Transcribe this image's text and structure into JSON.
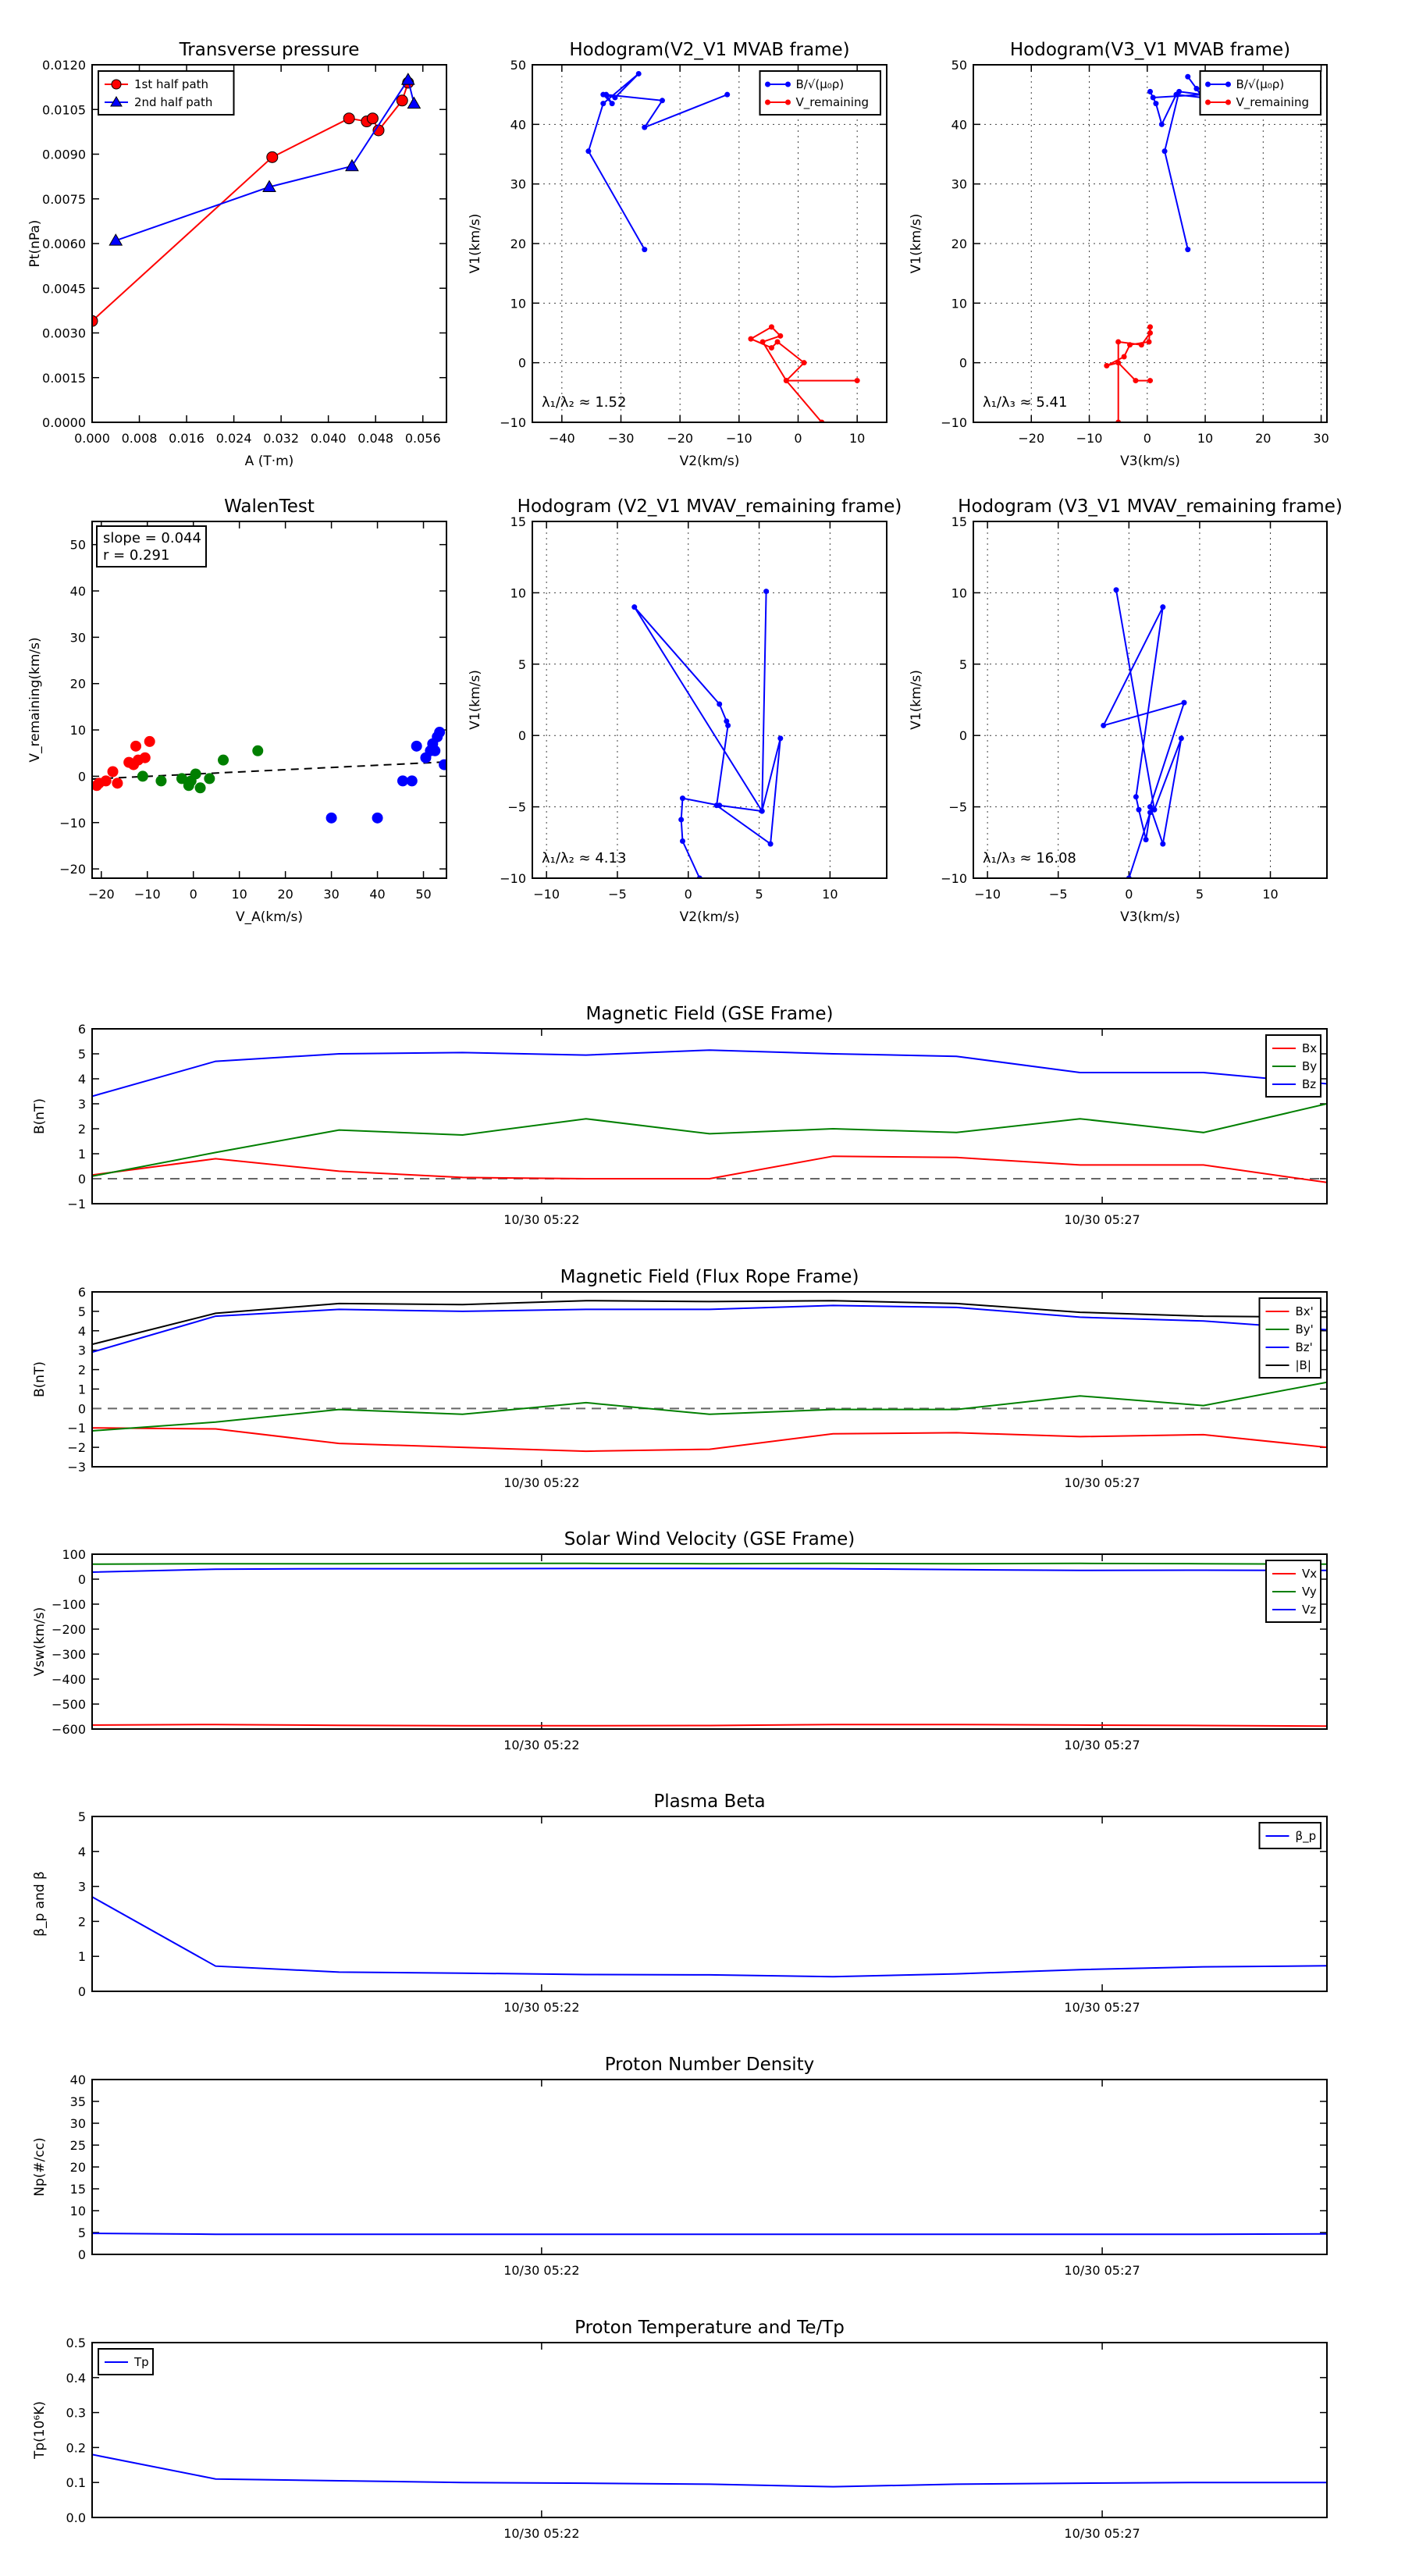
{
  "chart_data": [
    {
      "type": "scatter",
      "title": "Transverse pressure",
      "xlabel": "A (T·m)",
      "ylabel": "Pt(nPa)",
      "xlim": [
        0,
        0.06
      ],
      "ylim": [
        0,
        0.012
      ],
      "xticks": [
        0.0,
        0.008,
        0.016,
        0.024,
        0.032,
        0.04,
        0.048,
        0.056
      ],
      "yticks": [
        0.0,
        0.0015,
        0.003,
        0.0045,
        0.006,
        0.0075,
        0.009,
        0.0105,
        0.012
      ],
      "tick_decimals": [
        3,
        4
      ],
      "grid": false,
      "legend_position": "top-left",
      "series": [
        {
          "name": "1st half path",
          "color": "#ff0000",
          "marker": "circle",
          "x": [
            0.0,
            0.0305,
            0.0435,
            0.0465,
            0.0475,
            0.0485,
            0.0525,
            0.0535
          ],
          "y": [
            0.0034,
            0.0089,
            0.0102,
            0.0101,
            0.0102,
            0.0098,
            0.0108,
            0.0114
          ]
        },
        {
          "name": "2nd half path",
          "color": "#0000ff",
          "marker": "triangle",
          "x": [
            0.004,
            0.03,
            0.044,
            0.0535,
            0.0545
          ],
          "y": [
            0.0061,
            0.0079,
            0.0086,
            0.0115,
            0.0107
          ]
        }
      ]
    },
    {
      "type": "line",
      "title": "Hodogram(V2_V1 MVAB frame)",
      "xlabel": "V2(km/s)",
      "ylabel": "V1(km/s)",
      "xlim": [
        -45,
        15
      ],
      "ylim": [
        -10,
        50
      ],
      "xticks": [
        -40,
        -30,
        -20,
        -10,
        0,
        10
      ],
      "yticks": [
        -10,
        0,
        10,
        20,
        30,
        40,
        50
      ],
      "grid": true,
      "legend_position": "top-right",
      "annotation": "λ₁/λ₂ ≈ 1.52",
      "series": [
        {
          "name": "B/√(μ₀ρ)",
          "color": "#0000ff",
          "x": [
            -12,
            -26,
            -23,
            -32.5,
            -31.5,
            -33,
            -31,
            -27,
            -33,
            -35.5,
            -26
          ],
          "y": [
            45,
            39.5,
            44,
            45,
            43.5,
            45,
            44.5,
            48.5,
            43.5,
            35.5,
            19
          ]
        },
        {
          "name": "V_remaining",
          "color": "#ff0000",
          "x": [
            4,
            -2,
            -6,
            -3,
            -4.5,
            -8,
            -4.5,
            -3.5,
            1,
            -2,
            10
          ],
          "y": [
            -10,
            -3,
            3.5,
            4.5,
            6,
            4,
            2.5,
            3.5,
            0,
            -3,
            -3
          ]
        }
      ]
    },
    {
      "type": "line",
      "title": "Hodogram(V3_V1 MVAB frame)",
      "xlabel": "V3(km/s)",
      "ylabel": "V1(km/s)",
      "xlim": [
        -30,
        31
      ],
      "ylim": [
        -10,
        50
      ],
      "xticks": [
        -20,
        -10,
        0,
        10,
        20,
        30
      ],
      "yticks": [
        -10,
        0,
        10,
        20,
        30,
        40,
        50
      ],
      "grid": true,
      "legend_position": "top-right",
      "annotation": "λ₁/λ₃ ≈ 5.41",
      "series": [
        {
          "name": "B/√(μ₀ρ)",
          "color": "#0000ff",
          "x": [
            7,
            8.5,
            9.5,
            5,
            2.5,
            1.5,
            0.5,
            1,
            9.5,
            5.5,
            3,
            7
          ],
          "y": [
            48,
            46,
            44.5,
            45,
            40,
            43.5,
            45.5,
            44.5,
            45,
            45.5,
            35.5,
            19
          ]
        },
        {
          "name": "V_remaining",
          "color": "#ff0000",
          "x": [
            -5,
            -5,
            -1,
            0.5,
            0.5,
            0.3,
            -3,
            -4,
            -7,
            -5,
            -2,
            0.5
          ],
          "y": [
            -10,
            3.5,
            3,
            5,
            6,
            3.5,
            3,
            1,
            -0.5,
            0,
            -3,
            -3
          ]
        }
      ]
    },
    {
      "type": "scatter",
      "title": "WalenTest",
      "xlabel": "V_A(km/s)",
      "ylabel": "V_remaining(km/s)",
      "xlim": [
        -22,
        55
      ],
      "ylim": [
        -22,
        55
      ],
      "xticks": [
        -20,
        -10,
        0,
        10,
        20,
        30,
        40,
        50
      ],
      "yticks": [
        -20,
        -10,
        0,
        10,
        20,
        30,
        40,
        50
      ],
      "grid": false,
      "annotation": [
        "slope = 0.044",
        "r = 0.291"
      ],
      "fit_line": {
        "x": [
          -22,
          55
        ],
        "y": [
          -0.6,
          3.1
        ]
      },
      "series": [
        {
          "name": "",
          "color": "#ff0000",
          "x": [
            -21,
            -20.5,
            -19,
            -17.5,
            -16.5,
            -14,
            -13,
            -12.5,
            -12,
            -10.5,
            -9.5
          ],
          "y": [
            -2,
            -1.5,
            -1,
            1,
            -1.5,
            3,
            2.5,
            6.5,
            3.5,
            4,
            7.5
          ]
        },
        {
          "name": "",
          "color": "#007f00",
          "x": [
            -11,
            -7,
            -2.5,
            -1,
            -0.5,
            0.5,
            1.5,
            3.5,
            6.5,
            14
          ],
          "y": [
            0,
            -1,
            -0.5,
            -2,
            -1,
            0.5,
            -2.5,
            -0.5,
            3.5,
            5.5
          ]
        },
        {
          "name": "",
          "color": "#0000ff",
          "x": [
            30,
            40,
            45.5,
            47.5,
            48.5,
            50.5,
            51.5,
            52,
            52.5,
            53,
            53.5,
            54.5
          ],
          "y": [
            -9,
            -9,
            -1,
            -1,
            6.5,
            4,
            5.5,
            7,
            5.5,
            8.5,
            9.5,
            2.5
          ]
        }
      ]
    },
    {
      "type": "line",
      "title": "Hodogram (V2_V1 MVAV_remaining frame)",
      "xlabel": "V2(km/s)",
      "ylabel": "V1(km/s)",
      "xlim": [
        -11,
        14
      ],
      "ylim": [
        -10,
        15
      ],
      "xticks": [
        -10,
        -5,
        0,
        5,
        10
      ],
      "yticks": [
        -10,
        -5,
        0,
        5,
        10,
        15
      ],
      "grid": true,
      "annotation": "λ₁/λ₂ ≈ 4.13",
      "series": [
        {
          "name": "",
          "color": "#0000ff",
          "x": [
            5.5,
            5.2,
            6.5,
            5.8,
            2.0,
            2.8,
            2.7,
            2.2,
            -3.8,
            5.2,
            2.2,
            -0.4,
            -0.5,
            -0.4,
            0.8
          ],
          "y": [
            10.1,
            -5.3,
            -0.2,
            -7.6,
            -4.9,
            0.7,
            1.0,
            2.2,
            9.0,
            -5.3,
            -4.9,
            -4.4,
            -5.9,
            -7.4,
            -10.0
          ]
        }
      ]
    },
    {
      "type": "line",
      "title": "Hodogram (V3_V1 MVAV_remaining frame)",
      "xlabel": "V3(km/s)",
      "ylabel": "V1(km/s)",
      "xlim": [
        -11,
        14
      ],
      "ylim": [
        -10,
        15
      ],
      "xticks": [
        -10,
        -5,
        0,
        5,
        10
      ],
      "yticks": [
        -10,
        -5,
        0,
        5,
        10,
        15
      ],
      "grid": true,
      "annotation": "λ₁/λ₃ ≈ 16.08",
      "series": [
        {
          "name": "",
          "color": "#0000ff",
          "x": [
            -0.9,
            1.8,
            3.7,
            2.4,
            1.5,
            3.9,
            -1.8,
            2.4,
            0.5,
            0.7,
            1.2,
            1.5,
            0.0
          ],
          "y": [
            10.2,
            -5.2,
            -0.2,
            -7.6,
            -5.0,
            2.3,
            0.7,
            9.0,
            -4.3,
            -5.2,
            -7.3,
            -5.4,
            -10.0
          ]
        }
      ]
    },
    {
      "type": "line",
      "title": "Magnetic Field (GSE Frame)",
      "ylabel": "B(nT)",
      "xtick_labels": [
        "10/30 05:22",
        "10/30 05:27"
      ],
      "ylim": [
        -1,
        6
      ],
      "yticks": [
        -1,
        0,
        1,
        2,
        3,
        4,
        5,
        6
      ],
      "legend_position": "top-right",
      "zero_line": true,
      "series": [
        {
          "name": "Bx",
          "color": "#ff0000",
          "values": [
            0.15,
            0.8,
            0.3,
            0.05,
            0.0,
            0.0,
            0.9,
            0.85,
            0.55,
            0.55,
            -0.15
          ]
        },
        {
          "name": "By",
          "color": "#007f00",
          "values": [
            0.1,
            1.05,
            1.95,
            1.75,
            2.4,
            1.8,
            2.0,
            1.85,
            2.4,
            1.85,
            3.0
          ]
        },
        {
          "name": "Bz",
          "color": "#0000ff",
          "values": [
            3.3,
            4.7,
            5.0,
            5.05,
            4.95,
            5.15,
            5.0,
            4.9,
            4.25,
            4.25,
            3.8
          ]
        }
      ]
    },
    {
      "type": "line",
      "title": "Magnetic Field (Flux Rope Frame)",
      "ylabel": "B(nT)",
      "xtick_labels": [
        "10/30 05:22",
        "10/30 05:27"
      ],
      "ylim": [
        -3,
        6
      ],
      "yticks": [
        -3,
        -2,
        -1,
        0,
        1,
        2,
        3,
        4,
        5,
        6
      ],
      "legend_position": "top-right",
      "zero_line": true,
      "series": [
        {
          "name": "Bx'",
          "color": "#ff0000",
          "values": [
            -1.0,
            -1.05,
            -1.8,
            -2.0,
            -2.2,
            -2.1,
            -1.3,
            -1.25,
            -1.45,
            -1.35,
            -2.0
          ]
        },
        {
          "name": "By'",
          "color": "#007f00",
          "values": [
            -1.15,
            -0.7,
            -0.05,
            -0.3,
            0.3,
            -0.3,
            -0.05,
            -0.05,
            0.65,
            0.15,
            1.35
          ]
        },
        {
          "name": "Bz'",
          "color": "#0000ff",
          "values": [
            2.9,
            4.75,
            5.1,
            5.0,
            5.1,
            5.1,
            5.3,
            5.2,
            4.7,
            4.5,
            4.05
          ]
        },
        {
          "name": "|B|",
          "color": "#000000",
          "values": [
            3.3,
            4.9,
            5.4,
            5.35,
            5.55,
            5.5,
            5.55,
            5.4,
            4.95,
            4.75,
            4.7
          ]
        }
      ]
    },
    {
      "type": "line",
      "title": "Solar Wind Velocity (GSE Frame)",
      "ylabel": "Vsw(km/s)",
      "xtick_labels": [
        "10/30 05:22",
        "10/30 05:27"
      ],
      "ylim": [
        -600,
        100
      ],
      "yticks": [
        -600,
        -500,
        -400,
        -300,
        -200,
        -100,
        0,
        100
      ],
      "legend_position": "top-right",
      "series": [
        {
          "name": "Vx",
          "color": "#ff0000",
          "values": [
            -584,
            -582,
            -585,
            -587,
            -587,
            -586,
            -582,
            -582,
            -584,
            -586,
            -588
          ]
        },
        {
          "name": "Vy",
          "color": "#007f00",
          "values": [
            60,
            62,
            62,
            63,
            63,
            62,
            63,
            62,
            63,
            62,
            60
          ]
        },
        {
          "name": "Vz",
          "color": "#0000ff",
          "values": [
            28,
            40,
            42,
            42,
            43,
            43,
            42,
            38,
            35,
            36,
            35
          ]
        }
      ]
    },
    {
      "type": "line",
      "title": "Plasma Beta",
      "ylabel": "β_p and β",
      "xtick_labels": [
        "10/30 05:22",
        "10/30 05:27"
      ],
      "ylim": [
        0,
        5
      ],
      "yticks": [
        0,
        1,
        2,
        3,
        4,
        5
      ],
      "legend_position": "top-right",
      "series": [
        {
          "name": "β_p",
          "color": "#0000ff",
          "values": [
            2.7,
            0.72,
            0.55,
            0.52,
            0.48,
            0.47,
            0.42,
            0.5,
            0.62,
            0.7,
            0.73
          ]
        }
      ]
    },
    {
      "type": "line",
      "title": "Proton Number Density",
      "ylabel": "Np(#/cc)",
      "xtick_labels": [
        "10/30 05:22",
        "10/30 05:27"
      ],
      "ylim": [
        0,
        40
      ],
      "yticks": [
        0,
        5,
        10,
        15,
        20,
        25,
        30,
        35,
        40
      ],
      "series": [
        {
          "name": "",
          "color": "#0000ff",
          "values": [
            4.8,
            4.6,
            4.6,
            4.6,
            4.6,
            4.6,
            4.6,
            4.6,
            4.6,
            4.6,
            4.7
          ]
        }
      ]
    },
    {
      "type": "line",
      "title": "Proton Temperature and Te/Tp",
      "ylabel": "Tp(10⁶K)",
      "xtick_labels": [
        "10/30 05:22",
        "10/30 05:27"
      ],
      "ylim": [
        0,
        0.5
      ],
      "yticks": [
        0,
        0.1,
        0.2,
        0.3,
        0.4,
        0.5
      ],
      "tick_decimals": [
        0,
        1
      ],
      "legend_position": "top-left",
      "series": [
        {
          "name": "Tp",
          "color": "#0000ff",
          "values": [
            0.18,
            0.11,
            0.105,
            0.1,
            0.098,
            0.095,
            0.088,
            0.095,
            0.098,
            0.1,
            0.1
          ]
        }
      ]
    }
  ]
}
